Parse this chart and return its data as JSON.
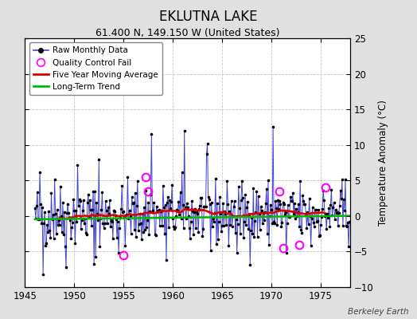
{
  "title": "EKLUTNA LAKE",
  "subtitle": "61.400 N, 149.150 W (United States)",
  "ylabel": "Temperature Anomaly (°C)",
  "credit": "Berkeley Earth",
  "xlim": [
    1945,
    1978
  ],
  "ylim": [
    -10,
    25
  ],
  "yticks": [
    -10,
    -5,
    0,
    5,
    10,
    15,
    20,
    25
  ],
  "xticks": [
    1945,
    1950,
    1955,
    1960,
    1965,
    1970,
    1975
  ],
  "fig_bg_color": "#e0e0e0",
  "plot_bg_color": "#ffffff",
  "raw_line_color": "#4444cc",
  "raw_dot_color": "#000000",
  "ma_color": "#dd0000",
  "trend_color": "#00bb00",
  "qc_color": "#ff00ff",
  "grid_color": "#bbbbbb",
  "seed": 42,
  "years_start": 1946,
  "years_end": 1977,
  "noise_std": 2.2,
  "spike_times_pos": [
    [
      1946.5,
      6.2
    ],
    [
      1948.0,
      5.2
    ],
    [
      1950.3,
      7.2
    ],
    [
      1952.5,
      8.0
    ],
    [
      1957.8,
      11.5
    ],
    [
      1961.2,
      12.0
    ],
    [
      1963.5,
      10.2
    ],
    [
      1970.2,
      12.5
    ]
  ],
  "spike_times_neg": [
    [
      1946.8,
      -8.2
    ],
    [
      1949.2,
      -7.2
    ],
    [
      1952.0,
      -6.8
    ],
    [
      1954.5,
      -5.2
    ],
    [
      1959.3,
      -6.2
    ],
    [
      1963.8,
      -4.8
    ],
    [
      1966.5,
      -5.2
    ],
    [
      1971.5,
      -5.2
    ],
    [
      1974.0,
      -4.2
    ]
  ],
  "qc_times": [
    1957.2,
    1957.5,
    1955.0,
    1970.8,
    1971.2,
    1975.5,
    1972.8
  ],
  "qc_vals": [
    5.5,
    3.5,
    -5.5,
    3.5,
    -4.5,
    4.0,
    -4.0
  ],
  "trend_intercept": -0.45,
  "trend_slope": 0.015,
  "ma_window": 60
}
